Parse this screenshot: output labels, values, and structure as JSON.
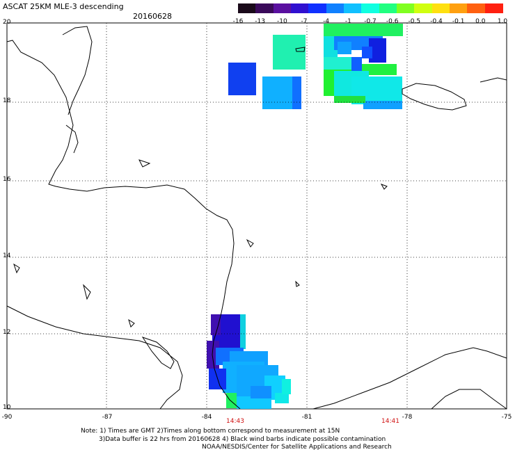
{
  "header": {
    "title": "ASCAT 25KM MLE-3 descending",
    "date": "20160628"
  },
  "colorbar": {
    "labels": [
      "-16",
      "-13",
      "-10",
      "-7",
      "-4",
      "-1",
      "-0.7",
      "-0.6",
      "-0.5",
      "-0.4",
      "-0.1",
      "0.0",
      "1.0"
    ],
    "colors": [
      "#1a0a1a",
      "#3a0a5a",
      "#5a10a0",
      "#3010d0",
      "#1030ff",
      "#1080ff",
      "#10c0ff",
      "#10ffe0",
      "#20ff80",
      "#80ff20",
      "#d0ff10",
      "#ffe010",
      "#ffa010",
      "#ff6010",
      "#ff2010"
    ]
  },
  "axes": {
    "lat_labels": [
      "20",
      "18",
      "16",
      "14",
      "12",
      "10"
    ],
    "lon_labels": [
      "-90",
      "-87",
      "-84",
      "-81",
      "-78",
      "-75"
    ]
  },
  "times": [
    "14:43",
    "14:41"
  ],
  "notes": {
    "line1": "Note: 1) Times are GMT 2)Times along bottom correspond to measurement at 15N",
    "line2": "3)Data buffer is 22 hrs from 20160628 4) Black wind barbs indicate possible contamination",
    "line3": "NOAA/NESDIS/Center for Satellite Applications and Research"
  }
}
